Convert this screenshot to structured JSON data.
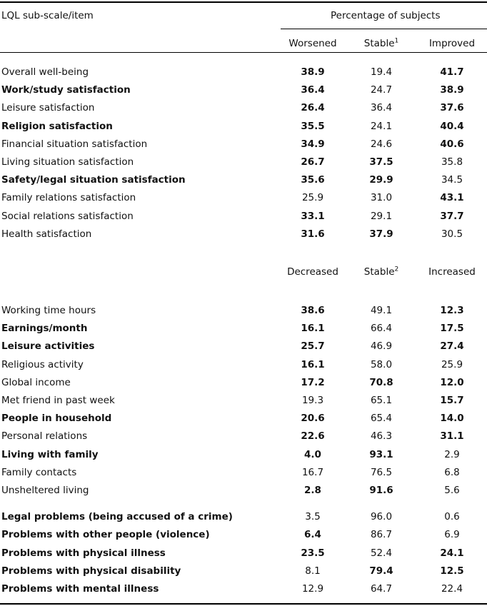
{
  "header": {
    "col_label": "LQL sub-scale/item",
    "group_label": "Percentage of subjects"
  },
  "section1": {
    "col_worsened": "Worsened",
    "col_stable": "Stable",
    "col_stable_sup": "1",
    "col_improved": "Improved",
    "rows": [
      {
        "label": "Overall well-being",
        "label_bold": false,
        "v": [
          "38.9",
          "19.4",
          "41.7"
        ],
        "b": [
          true,
          false,
          true
        ]
      },
      {
        "label": "Work/study satisfaction",
        "label_bold": true,
        "v": [
          "36.4",
          "24.7",
          "38.9"
        ],
        "b": [
          true,
          false,
          true
        ]
      },
      {
        "label": "Leisure satisfaction",
        "label_bold": false,
        "v": [
          "26.4",
          "36.4",
          "37.6"
        ],
        "b": [
          true,
          false,
          true
        ]
      },
      {
        "label": "Religion satisfaction",
        "label_bold": true,
        "v": [
          "35.5",
          "24.1",
          "40.4"
        ],
        "b": [
          true,
          false,
          true
        ]
      },
      {
        "label": "Financial situation satisfaction",
        "label_bold": false,
        "v": [
          "34.9",
          "24.6",
          "40.6"
        ],
        "b": [
          true,
          false,
          true
        ]
      },
      {
        "label": "Living situation satisfaction",
        "label_bold": false,
        "v": [
          "26.7",
          "37.5",
          "35.8"
        ],
        "b": [
          true,
          true,
          false
        ]
      },
      {
        "label": "Safety/legal situation satisfaction",
        "label_bold": true,
        "v": [
          "35.6",
          "29.9",
          "34.5"
        ],
        "b": [
          true,
          true,
          false
        ]
      },
      {
        "label": "Family relations satisfaction",
        "label_bold": false,
        "v": [
          "25.9",
          "31.0",
          "43.1"
        ],
        "b": [
          false,
          false,
          true
        ]
      },
      {
        "label": "Social relations satisfaction",
        "label_bold": false,
        "v": [
          "33.1",
          "29.1",
          "37.7"
        ],
        "b": [
          true,
          false,
          true
        ]
      },
      {
        "label": "Health satisfaction",
        "label_bold": false,
        "v": [
          "31.6",
          "37.9",
          "30.5"
        ],
        "b": [
          true,
          true,
          false
        ]
      }
    ]
  },
  "section2": {
    "col_decreased": "Decreased",
    "col_stable": "Stable",
    "col_stable_sup": "2",
    "col_increased": "Increased",
    "rows": [
      {
        "label": "Working time hours",
        "label_bold": false,
        "v": [
          "38.6",
          "49.1",
          "12.3"
        ],
        "b": [
          true,
          false,
          true
        ]
      },
      {
        "label": "Earnings/month",
        "label_bold": true,
        "v": [
          "16.1",
          "66.4",
          "17.5"
        ],
        "b": [
          true,
          false,
          true
        ]
      },
      {
        "label": "Leisure activities",
        "label_bold": true,
        "v": [
          "25.7",
          "46.9",
          "27.4"
        ],
        "b": [
          true,
          false,
          true
        ]
      },
      {
        "label": "Religious activity",
        "label_bold": false,
        "v": [
          "16.1",
          "58.0",
          "25.9"
        ],
        "b": [
          true,
          false,
          false
        ]
      },
      {
        "label": "Global income",
        "label_bold": false,
        "v": [
          "17.2",
          "70.8",
          "12.0"
        ],
        "b": [
          true,
          true,
          true
        ]
      },
      {
        "label": "Met friend in past week",
        "label_bold": false,
        "v": [
          "19.3",
          "65.1",
          "15.7"
        ],
        "b": [
          false,
          false,
          true
        ]
      },
      {
        "label": "People in household",
        "label_bold": true,
        "v": [
          "20.6",
          "65.4",
          "14.0"
        ],
        "b": [
          true,
          false,
          true
        ]
      },
      {
        "label": "Personal relations",
        "label_bold": false,
        "v": [
          "22.6",
          "46.3",
          "31.1"
        ],
        "b": [
          true,
          false,
          true
        ]
      },
      {
        "label": "Living with family",
        "label_bold": true,
        "v": [
          "4.0",
          "93.1",
          "2.9"
        ],
        "b": [
          true,
          true,
          false
        ]
      },
      {
        "label": "Family contacts",
        "label_bold": false,
        "v": [
          "16.7",
          "76.5",
          "6.8"
        ],
        "b": [
          false,
          false,
          false
        ]
      },
      {
        "label": "Unsheltered living",
        "label_bold": false,
        "v": [
          "2.8",
          "91.6",
          "5.6"
        ],
        "b": [
          true,
          true,
          false
        ]
      },
      {
        "label": "Legal problems (being accused of a crime)",
        "label_bold": true,
        "v": [
          "3.5",
          "96.0",
          "0.6"
        ],
        "b": [
          false,
          false,
          false
        ]
      },
      {
        "label": "Problems with other people (violence)",
        "label_bold": true,
        "v": [
          "6.4",
          "86.7",
          "6.9"
        ],
        "b": [
          true,
          false,
          false
        ]
      },
      {
        "label": "Problems with physical illness",
        "label_bold": true,
        "v": [
          "23.5",
          "52.4",
          "24.1"
        ],
        "b": [
          true,
          false,
          true
        ]
      },
      {
        "label": "Problems with physical disability",
        "label_bold": true,
        "v": [
          "8.1",
          "79.4",
          "12.5"
        ],
        "b": [
          false,
          true,
          true
        ]
      },
      {
        "label": "Problems with mental illness",
        "label_bold": true,
        "v": [
          "12.9",
          "64.7",
          "22.4"
        ],
        "b": [
          false,
          false,
          false
        ]
      }
    ]
  }
}
